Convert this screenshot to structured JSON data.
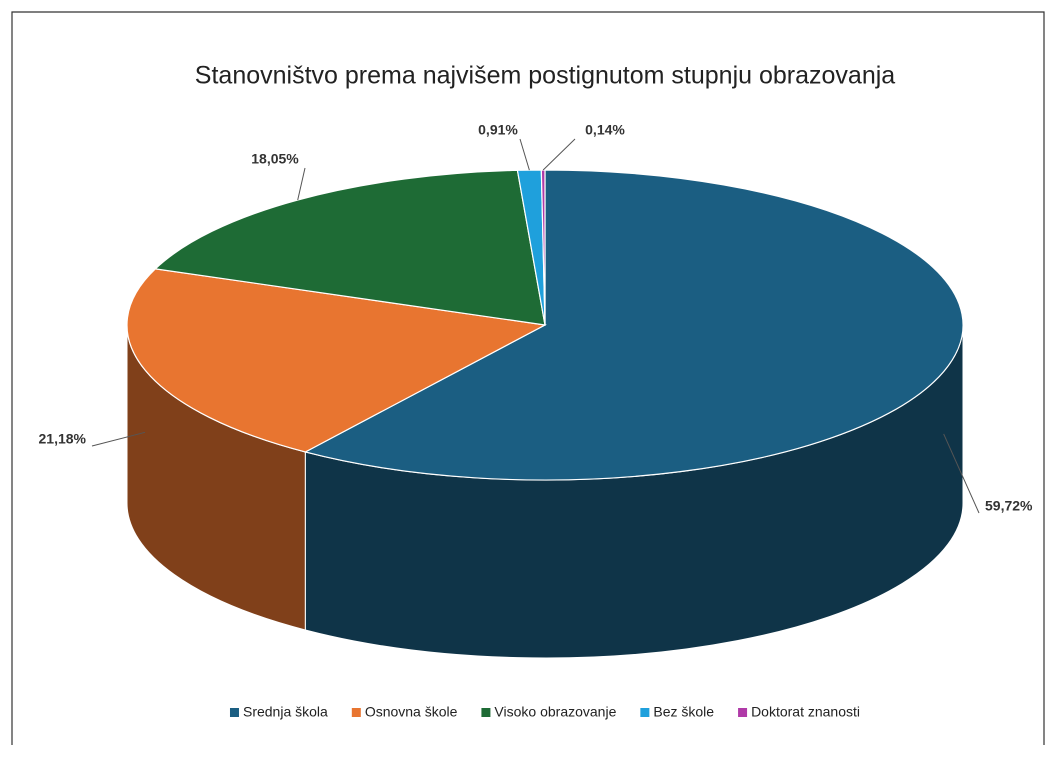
{
  "chart_data": {
    "type": "pie3d",
    "title": "Stanovništvo prema najvišem postignutom stupnju obrazovanja",
    "categories": [
      "Srednja škola",
      "Osnovna škole",
      "Visoko obrazovanje",
      "Bez škole",
      "Doktorat znanosti"
    ],
    "values": [
      59.72,
      21.18,
      18.05,
      0.91,
      0.14
    ],
    "value_labels": [
      "59,72%",
      "21,18%",
      "18,05%",
      "0,91%",
      "0,14%"
    ],
    "colors": [
      "#1b5e82",
      "#e87530",
      "#1e6b35",
      "#1fa0dc",
      "#b03aa8"
    ],
    "legend": "bottom"
  }
}
